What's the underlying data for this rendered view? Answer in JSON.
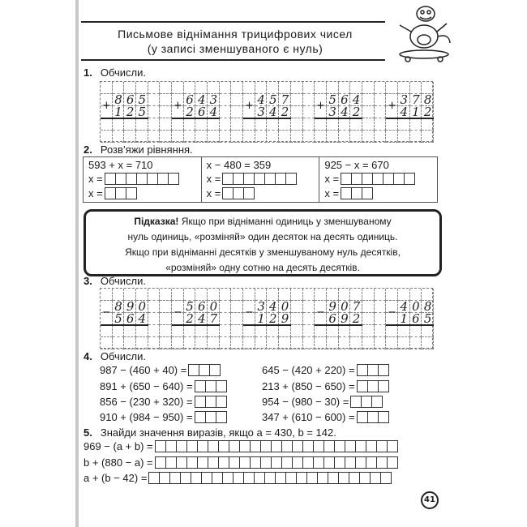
{
  "header": {
    "title_line1": "Письмове віднімання трицифрових чисел",
    "title_line2": "(у записі зменшуваного є нуль)",
    "mascot": "cartoon-dinosaur-on-skateboard"
  },
  "ex1": {
    "number": "1.",
    "label": "Обчисли.",
    "problems": [
      {
        "sign": "+",
        "top": "865",
        "bottom": "125"
      },
      {
        "sign": "+",
        "top": "643",
        "bottom": "264"
      },
      {
        "sign": "+",
        "top": "457",
        "bottom": "342"
      },
      {
        "sign": "+",
        "top": "564",
        "bottom": "342"
      },
      {
        "sign": "+",
        "top": "378",
        "bottom": "412"
      }
    ]
  },
  "ex2": {
    "number": "2.",
    "label": "Розв’яжи рівняння.",
    "equations": [
      {
        "equation": "593 + x = 710",
        "answer_prefix": "x =",
        "result_prefix": "x ="
      },
      {
        "equation": "x − 480 = 359",
        "answer_prefix": "x =",
        "result_prefix": "x ="
      },
      {
        "equation": "925 − x = 670",
        "answer_prefix": "x =",
        "result_prefix": "x ="
      }
    ]
  },
  "hint": {
    "bold": "Підказка!",
    "line1": " Якщо при відніманні одиниць у зменшуваному",
    "line2": "нуль одиниць, «розміняй» один десяток на десять одиниць.",
    "line3": "Якщо при відніманні десятків у зменшуваному нуль десятків,",
    "line4": "«розміняй» одну сотню на десять десятків."
  },
  "ex3": {
    "number": "3.",
    "label": "Обчисли.",
    "problems": [
      {
        "sign": "−",
        "top": "890",
        "bottom": "564"
      },
      {
        "sign": "−",
        "top": "560",
        "bottom": "247"
      },
      {
        "sign": "−",
        "top": "340",
        "bottom": "129"
      },
      {
        "sign": "−",
        "top": "907",
        "bottom": "692"
      },
      {
        "sign": "−",
        "top": "408",
        "bottom": "165"
      }
    ]
  },
  "ex4": {
    "number": "4.",
    "label": "Обчисли.",
    "left": [
      "987 − (460 + 40) =",
      "891 + (650 − 640) =",
      "856 − (230 + 320) =",
      "910 + (984 − 950) ="
    ],
    "right": [
      "645 − (420 + 220) =",
      "213 + (850 − 650) =",
      "954 − (980 − 30) =",
      "347 + (610 − 600) ="
    ]
  },
  "ex5": {
    "number": "5.",
    "label": "Знайди значення виразів, якщо a = 430, b = 142.",
    "expressions": [
      "969 − (a + b) =",
      "b + (880 − a) =",
      "a + (b − 42) ="
    ]
  },
  "footer": {
    "page_number": "41"
  }
}
